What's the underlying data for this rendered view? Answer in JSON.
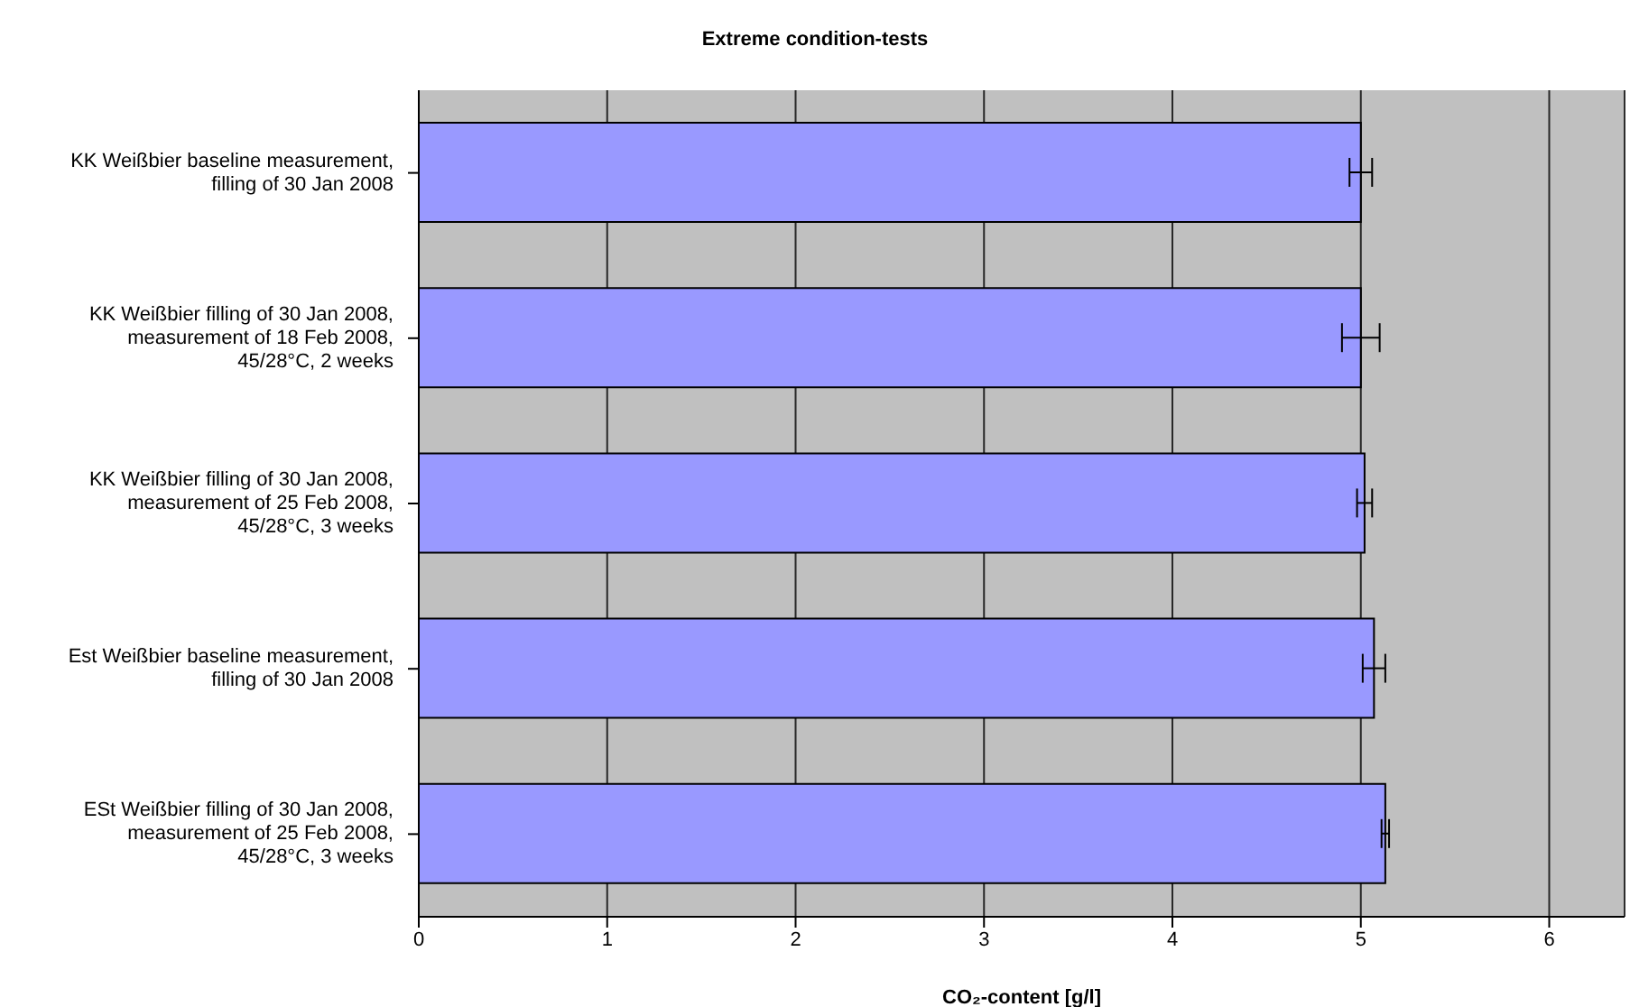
{
  "chart_data": {
    "type": "bar",
    "orientation": "horizontal",
    "title": "Extreme condition-tests",
    "xlabel": "CO₂-content [g/l]",
    "categories": [
      "KK Weißbier baseline measurement, filling of 30 Jan 2008",
      "KK Weißbier filling of 30 Jan 2008, measurement of 18 Feb 2008, 45/28°C, 2 weeks",
      "KK Weißbier filling of 30 Jan 2008, measurement of 25 Feb 2008, 45/28°C, 3 weeks",
      "Est Weißbier baseline measurement, filling of 30 Jan 2008",
      "ESt Weißbier filling of 30 Jan 2008, measurement of 25 Feb 2008, 45/28°C, 3 weeks"
    ],
    "values": [
      5.0,
      5.0,
      5.02,
      5.07,
      5.13
    ],
    "errors": [
      0.06,
      0.1,
      0.04,
      0.06,
      0.02
    ],
    "color": "#9999ff",
    "xlim": [
      0,
      6.4
    ],
    "xticks": [
      0,
      1,
      2,
      3,
      4,
      5,
      6
    ],
    "grid": "x"
  }
}
